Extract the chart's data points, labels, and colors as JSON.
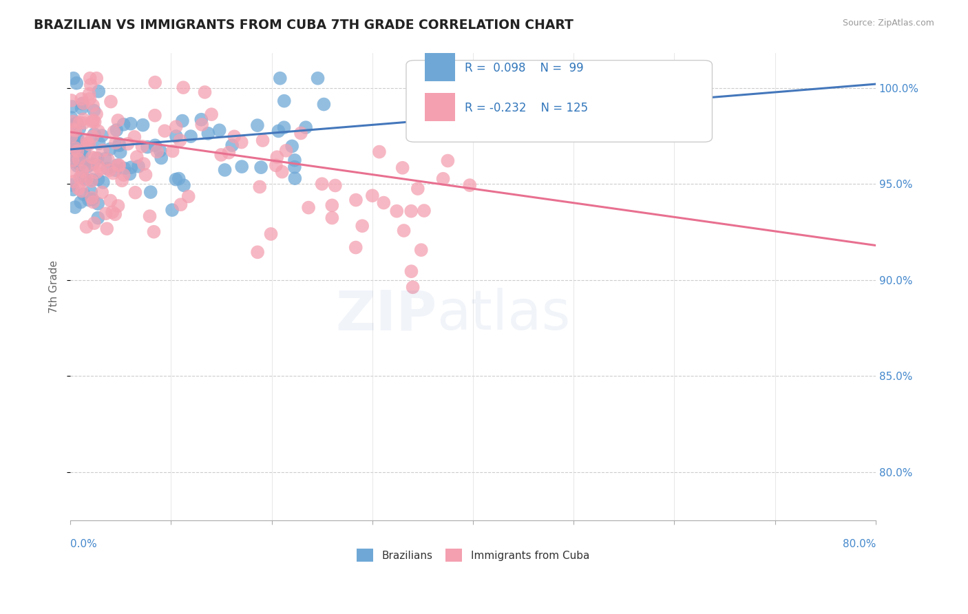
{
  "title": "BRAZILIAN VS IMMIGRANTS FROM CUBA 7TH GRADE CORRELATION CHART",
  "source": "Source: ZipAtlas.com",
  "ylabel": "7th Grade",
  "xlim": [
    0.0,
    0.8
  ],
  "ylim": [
    0.775,
    1.018
  ],
  "r_blue": 0.098,
  "n_blue": 99,
  "r_pink": -0.232,
  "n_pink": 125,
  "blue_color": "#6fa8d6",
  "pink_color": "#f4a0b0",
  "blue_line_color": "#4477bb",
  "pink_line_color": "#e87090",
  "background_color": "#ffffff",
  "grid_color": "#cccccc",
  "blue_line_x": [
    0.0,
    0.8
  ],
  "blue_line_y": [
    0.968,
    1.002
  ],
  "pink_line_x": [
    0.0,
    0.8
  ],
  "pink_line_y": [
    0.977,
    0.918
  ],
  "yticks": [
    0.8,
    0.85,
    0.9,
    0.95,
    1.0
  ],
  "ytick_labels": [
    "80.0%",
    "85.0%",
    "90.0%",
    "95.0%",
    "100.0%"
  ],
  "xtick_color": "#4488cc",
  "ytick_color": "#4488cc",
  "watermark_zip": "ZIP",
  "watermark_atlas": "atlas"
}
